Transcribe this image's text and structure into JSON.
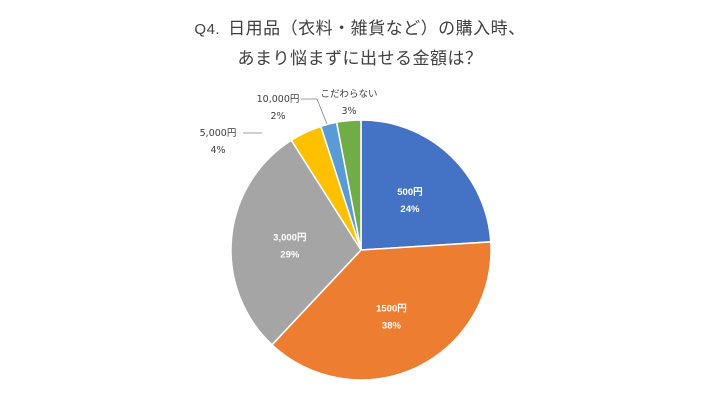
{
  "chart_data": {
    "type": "pie",
    "title_prefix": "Q4.",
    "title_line1": "日用品（衣料・雑貨など）の購入時、",
    "title_line2": "あまり悩まずに出せる金額は？",
    "start_angle_deg": 0,
    "direction": "clockwise",
    "slices": [
      {
        "label": "500円",
        "percent_label": "24%",
        "value": 24,
        "color": "#4472C4",
        "label_position": "inside"
      },
      {
        "label": "1500円",
        "percent_label": "38%",
        "value": 38,
        "color": "#ED7D31",
        "label_position": "inside"
      },
      {
        "label": "3,000円",
        "percent_label": "29%",
        "value": 29,
        "color": "#A5A5A5",
        "label_position": "inside"
      },
      {
        "label": "5,000円",
        "percent_label": "4%",
        "value": 4,
        "color": "#FFC000",
        "label_position": "outside"
      },
      {
        "label": "10,000円",
        "percent_label": "2%",
        "value": 2,
        "color": "#5B9BD5",
        "label_position": "outside"
      },
      {
        "label": "こだわらない",
        "percent_label": "3%",
        "value": 3,
        "color": "#70AD47",
        "label_position": "outside"
      }
    ]
  }
}
